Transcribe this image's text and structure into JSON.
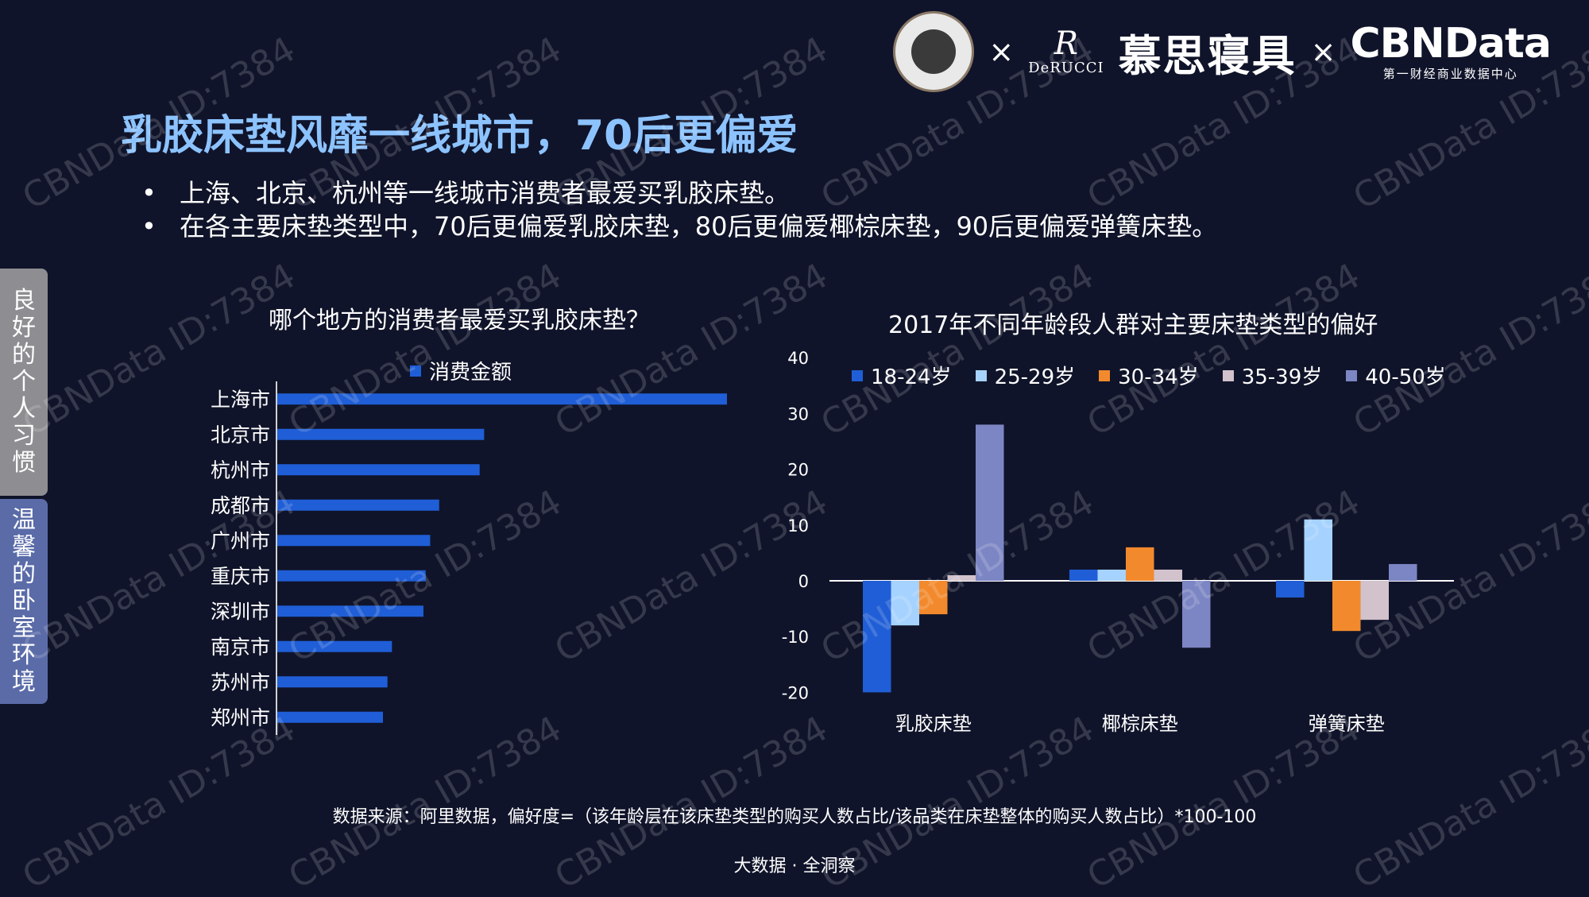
{
  "header": {
    "x_mark_1": "×",
    "x_mark_2": "×",
    "derucci_mark": "R",
    "derucci_text": "DeRUCCI",
    "mousi_text": "慕思寝具",
    "cbndata_text": "CBNData",
    "cbndata_sub": "第一财经商业数据中心"
  },
  "title": "乳胶床垫风靡一线城市，70后更偏爱",
  "bullets": [
    "上海、北京、杭州等一线城市消费者最爱买乳胶床垫。",
    "在各主要床垫类型中，70后更偏爱乳胶床垫，80后更偏爱椰棕床垫，90后更偏爱弹簧床垫。"
  ],
  "bullet_mark": "•",
  "side_tabs": [
    "良好的个人习惯",
    "温馨的卧室环境"
  ],
  "watermark_text": "CBNData ID:7384",
  "colors": {
    "title": "#8cc3ff",
    "bar_blue": "#1f5ed6",
    "age_18_24": "#1f5ed6",
    "age_25_29": "#a6d2ff",
    "age_30_34": "#f28a2d",
    "age_35_39": "#d2c2cc",
    "age_40_50": "#7d86c4",
    "background": "#10142a"
  },
  "chart_data": [
    {
      "type": "bar",
      "orientation": "horizontal",
      "title": "哪个地方的消费者最爱买乳胶床垫？",
      "legend": "消费金额",
      "categories": [
        "上海市",
        "北京市",
        "杭州市",
        "成都市",
        "广州市",
        "重庆市",
        "深圳市",
        "南京市",
        "苏州市",
        "郑州市"
      ],
      "values": [
        100,
        46,
        45,
        36,
        34,
        33,
        32.5,
        25.5,
        24.5,
        23.5
      ],
      "value_axis_visible": false,
      "grid": false
    },
    {
      "type": "bar",
      "title": "2017年不同年龄段人群对主要床垫类型的偏好",
      "categories": [
        "乳胶床垫",
        "椰棕床垫",
        "弹簧床垫"
      ],
      "series": [
        {
          "name": "18-24岁",
          "values": [
            -20,
            2,
            -3
          ]
        },
        {
          "name": "25-29岁",
          "values": [
            -8,
            2,
            11
          ]
        },
        {
          "name": "30-34岁",
          "values": [
            -6,
            6,
            -9
          ]
        },
        {
          "name": "35-39岁",
          "values": [
            1,
            2,
            -7
          ]
        },
        {
          "name": "40-50岁",
          "values": [
            28,
            -12,
            3
          ]
        }
      ],
      "ylim": [
        -20,
        40
      ],
      "yticks": [
        -20,
        -10,
        0,
        10,
        20,
        30,
        40
      ],
      "legend_position": "top",
      "grid": false
    }
  ],
  "footer": {
    "source": "数据来源：阿里数据，偏好度=（该年龄层在该床垫类型的购买人数占比/该品类在床垫整体的购买人数占比）*100-100",
    "brand": "大数据 · 全洞察"
  }
}
